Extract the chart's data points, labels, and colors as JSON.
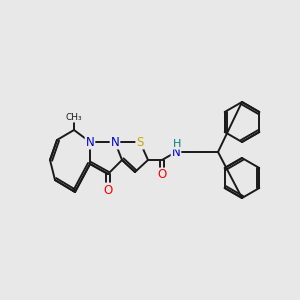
{
  "background_color": "#e8e8e8",
  "bond_color": "#1a1a1a",
  "atom_colors": {
    "N": "#0000cc",
    "O": "#ff0000",
    "S": "#ccaa00",
    "NH": "#008080",
    "C": "#1a1a1a"
  },
  "figsize": [
    3.0,
    3.0
  ],
  "dpi": 100
}
